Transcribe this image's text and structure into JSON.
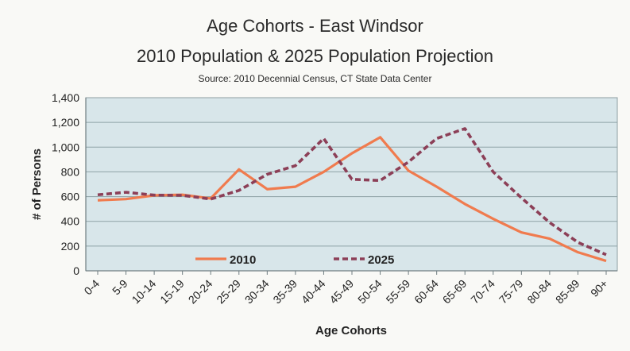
{
  "chart_data": {
    "type": "line",
    "title": "Age Cohorts - East Windsor",
    "subtitle": "2010 Population & 2025 Population Projection",
    "source": "Source: 2010 Decennial Census, CT State Data Center",
    "xlabel": "Age Cohorts",
    "ylabel": "# of Persons",
    "ylim": [
      0,
      1400
    ],
    "yticks": [
      "0",
      "200",
      "400",
      "600",
      "800",
      "1,000",
      "1,200",
      "1,400"
    ],
    "grid": true,
    "legend_position": "bottom-left inside plot",
    "categories": [
      "0-4",
      "5-9",
      "10-14",
      "15-19",
      "20-24",
      "25-29",
      "30-34",
      "35-39",
      "40-44",
      "45-49",
      "50-54",
      "55-59",
      "60-64",
      "65-69",
      "70-74",
      "75-79",
      "80-84",
      "85-89",
      "90+"
    ],
    "series": [
      {
        "name": "2010",
        "style": "solid",
        "color": "#f07b4e",
        "values": [
          570,
          580,
          610,
          615,
          585,
          820,
          660,
          680,
          800,
          950,
          1080,
          810,
          680,
          540,
          420,
          310,
          260,
          150,
          80
        ]
      },
      {
        "name": "2025",
        "style": "dashed",
        "color": "#8c3f57",
        "values": [
          615,
          635,
          612,
          610,
          580,
          650,
          780,
          850,
          1070,
          740,
          730,
          880,
          1070,
          1150,
          800,
          590,
          390,
          230,
          130
        ]
      }
    ]
  }
}
